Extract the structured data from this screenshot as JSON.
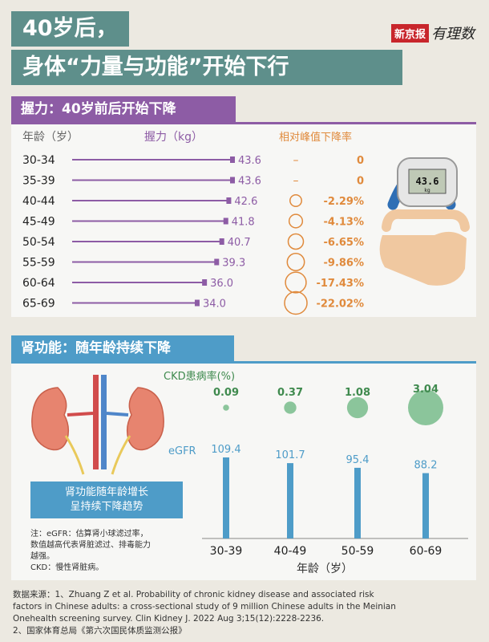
{
  "title": {
    "line1": "40岁后，",
    "line2": "身体“力量与功能”开始下行"
  },
  "brand": {
    "logo_text": "新京报",
    "script_text": "有理数"
  },
  "grip": {
    "header": "握力：40岁前后开始下降",
    "col_age": "年龄（岁）",
    "col_grip": "握力（kg）",
    "col_decline": "相对峰值下降率",
    "dynamometer_reading": "43.6",
    "dynamometer_unit": "kg"
  },
  "kidney": {
    "header": "肾功能：随年龄持续下降",
    "box_line1": "肾功能随年龄增长",
    "box_line2": "呈持续下降趋势",
    "footnote1": "注：eGFR：估算肾小球滤过率，",
    "footnote2": "数值越高代表肾脏滤过、排毒能力",
    "footnote3": "越强。",
    "footnote4": "CKD：慢性肾脏病。"
  },
  "sources": {
    "line1": "数据来源：1、Zhuang Z et al. Probability of chronic kidney disease and associated risk",
    "line2": "factors in Chinese adults: a cross-sectional study of 9 million Chinese adults in the Meinian",
    "line3": "Onehealth screening survey. Clin Kidney J. 2022 Aug 3;15(12):2228-2236.",
    "line4": "2、国家体育总局《第六次国民体质监测公报》"
  },
  "colors": {
    "teal": "#5e8f8b",
    "purple": "#8d5ca5",
    "blue": "#4e9cc8",
    "orange": "#e08a3c",
    "green": "#8bc59b",
    "green_text": "#3f8a4e"
  },
  "chart_data": [
    {
      "type": "bar",
      "orientation": "horizontal",
      "categories": [
        "30-34",
        "35-39",
        "40-44",
        "45-49",
        "50-54",
        "55-59",
        "60-64",
        "65-69"
      ],
      "values": [
        43.6,
        43.6,
        42.6,
        41.8,
        40.7,
        39.3,
        36.0,
        34.0
      ],
      "value_labels": [
        "43.6",
        "43.6",
        "42.6",
        "41.8",
        "40.7",
        "39.3",
        "36.0",
        "34.0"
      ],
      "decline_values": [
        0,
        0,
        2.29,
        4.13,
        6.65,
        9.86,
        17.43,
        22.02
      ],
      "decline_labels": [
        "0",
        "0",
        "-2.29%",
        "-4.13%",
        "-6.65%",
        "-9.86%",
        "-17.43%",
        "-22.02%"
      ],
      "decline_marks": [
        "–",
        "–",
        "",
        "",
        "",
        "",
        "",
        ""
      ],
      "xlabel": "握力（kg）",
      "ylabel": "年龄（岁）",
      "xlim": [
        0,
        43.6
      ]
    },
    {
      "type": "bar",
      "categories": [
        "30-39",
        "40-49",
        "50-59",
        "60-69"
      ],
      "series": [
        {
          "name": "eGFR",
          "values": [
            109.4,
            101.7,
            95.4,
            88.2
          ],
          "labels": [
            "109.4",
            "101.7",
            "95.4",
            "88.2"
          ]
        },
        {
          "name": "CKD患病率(%)",
          "values": [
            0.09,
            0.37,
            1.08,
            3.04
          ],
          "labels": [
            "0.09",
            "0.37",
            "1.08",
            "3.04"
          ]
        }
      ],
      "xlabel": "年龄（岁）",
      "ylim": [
        0,
        109.4
      ]
    }
  ]
}
